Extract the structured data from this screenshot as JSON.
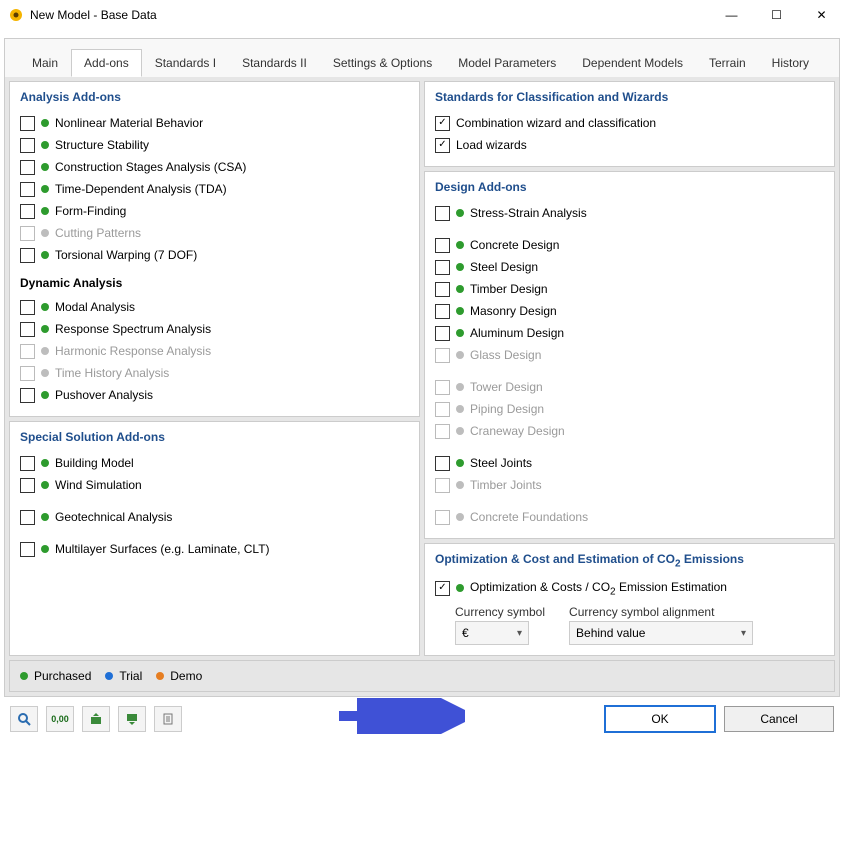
{
  "window_title": "New Model - Base Data",
  "tabs": [
    "Main",
    "Add-ons",
    "Standards I",
    "Standards II",
    "Settings & Options",
    "Model Parameters",
    "Dependent Models",
    "Terrain",
    "History"
  ],
  "active_tab": "Add-ons",
  "colors": {
    "panel_title": "#1f4e8c",
    "dot_green": "#2e9b2e",
    "dot_grey": "#bdbdbd",
    "dot_blue": "#1f6fd6",
    "dot_orange": "#e67e22",
    "arrow": "#3f51d6"
  },
  "left": {
    "analysis": {
      "title": "Analysis Add-ons",
      "items": [
        {
          "label": "Nonlinear Material Behavior",
          "dot": "green",
          "checked": false,
          "disabled": false
        },
        {
          "label": "Structure Stability",
          "dot": "green",
          "checked": false,
          "disabled": false
        },
        {
          "label": "Construction Stages Analysis (CSA)",
          "dot": "green",
          "checked": false,
          "disabled": false
        },
        {
          "label": "Time-Dependent Analysis (TDA)",
          "dot": "green",
          "checked": false,
          "disabled": false
        },
        {
          "label": "Form-Finding",
          "dot": "green",
          "checked": false,
          "disabled": false
        },
        {
          "label": "Cutting Patterns",
          "dot": "grey",
          "checked": false,
          "disabled": true
        },
        {
          "label": "Torsional Warping (7 DOF)",
          "dot": "green",
          "checked": false,
          "disabled": false
        }
      ],
      "dynamic_heading": "Dynamic Analysis",
      "dynamic_items": [
        {
          "label": "Modal Analysis",
          "dot": "green",
          "checked": false,
          "disabled": false
        },
        {
          "label": "Response Spectrum Analysis",
          "dot": "green",
          "checked": false,
          "disabled": false
        },
        {
          "label": "Harmonic Response Analysis",
          "dot": "grey",
          "checked": false,
          "disabled": true
        },
        {
          "label": "Time History Analysis",
          "dot": "grey",
          "checked": false,
          "disabled": true
        },
        {
          "label": "Pushover Analysis",
          "dot": "green",
          "checked": false,
          "disabled": false
        }
      ]
    },
    "special": {
      "title": "Special Solution Add-ons",
      "items": [
        {
          "label": "Building Model",
          "dot": "green",
          "checked": false,
          "disabled": false
        },
        {
          "label": "Wind Simulation",
          "dot": "green",
          "checked": false,
          "disabled": false
        },
        {
          "label": "Geotechnical Analysis",
          "dot": "green",
          "checked": false,
          "disabled": false
        },
        {
          "label": "Multilayer Surfaces (e.g. Laminate, CLT)",
          "dot": "green",
          "checked": false,
          "disabled": false
        }
      ]
    }
  },
  "right": {
    "standards": {
      "title": "Standards for Classification and Wizards",
      "items": [
        {
          "label": "Combination wizard and classification",
          "checked": true
        },
        {
          "label": "Load wizards",
          "checked": true
        }
      ]
    },
    "design": {
      "title": "Design Add-ons",
      "items": [
        {
          "label": "Stress-Strain Analysis",
          "dot": "green",
          "checked": false,
          "disabled": false,
          "spacer_after": true
        },
        {
          "label": "Concrete Design",
          "dot": "green",
          "checked": false,
          "disabled": false
        },
        {
          "label": "Steel Design",
          "dot": "green",
          "checked": false,
          "disabled": false
        },
        {
          "label": "Timber Design",
          "dot": "green",
          "checked": false,
          "disabled": false
        },
        {
          "label": "Masonry Design",
          "dot": "green",
          "checked": false,
          "disabled": false
        },
        {
          "label": "Aluminum Design",
          "dot": "green",
          "checked": false,
          "disabled": false
        },
        {
          "label": "Glass Design",
          "dot": "grey",
          "checked": false,
          "disabled": true,
          "spacer_after": true
        },
        {
          "label": "Tower Design",
          "dot": "grey",
          "checked": false,
          "disabled": true
        },
        {
          "label": "Piping Design",
          "dot": "grey",
          "checked": false,
          "disabled": true
        },
        {
          "label": "Craneway Design",
          "dot": "grey",
          "checked": false,
          "disabled": true,
          "spacer_after": true
        },
        {
          "label": "Steel Joints",
          "dot": "green",
          "checked": false,
          "disabled": false
        },
        {
          "label": "Timber Joints",
          "dot": "grey",
          "checked": false,
          "disabled": true,
          "spacer_after": true
        },
        {
          "label": "Concrete Foundations",
          "dot": "grey",
          "checked": false,
          "disabled": true
        }
      ]
    },
    "optimization": {
      "title_plain": "Optimization & Cost and Estimation of CO",
      "title_sub": "2",
      "title_tail": " Emissions",
      "item_plain": "Optimization & Costs / CO",
      "item_sub": "2",
      "item_tail": " Emission Estimation",
      "item_checked": true,
      "currency_label": "Currency symbol",
      "currency_value": "€",
      "alignment_label": "Currency symbol alignment",
      "alignment_value": "Behind value"
    }
  },
  "legend": {
    "purchased": "Purchased",
    "trial": "Trial",
    "demo": "Demo"
  },
  "buttons": {
    "ok": "OK",
    "cancel": "Cancel"
  }
}
